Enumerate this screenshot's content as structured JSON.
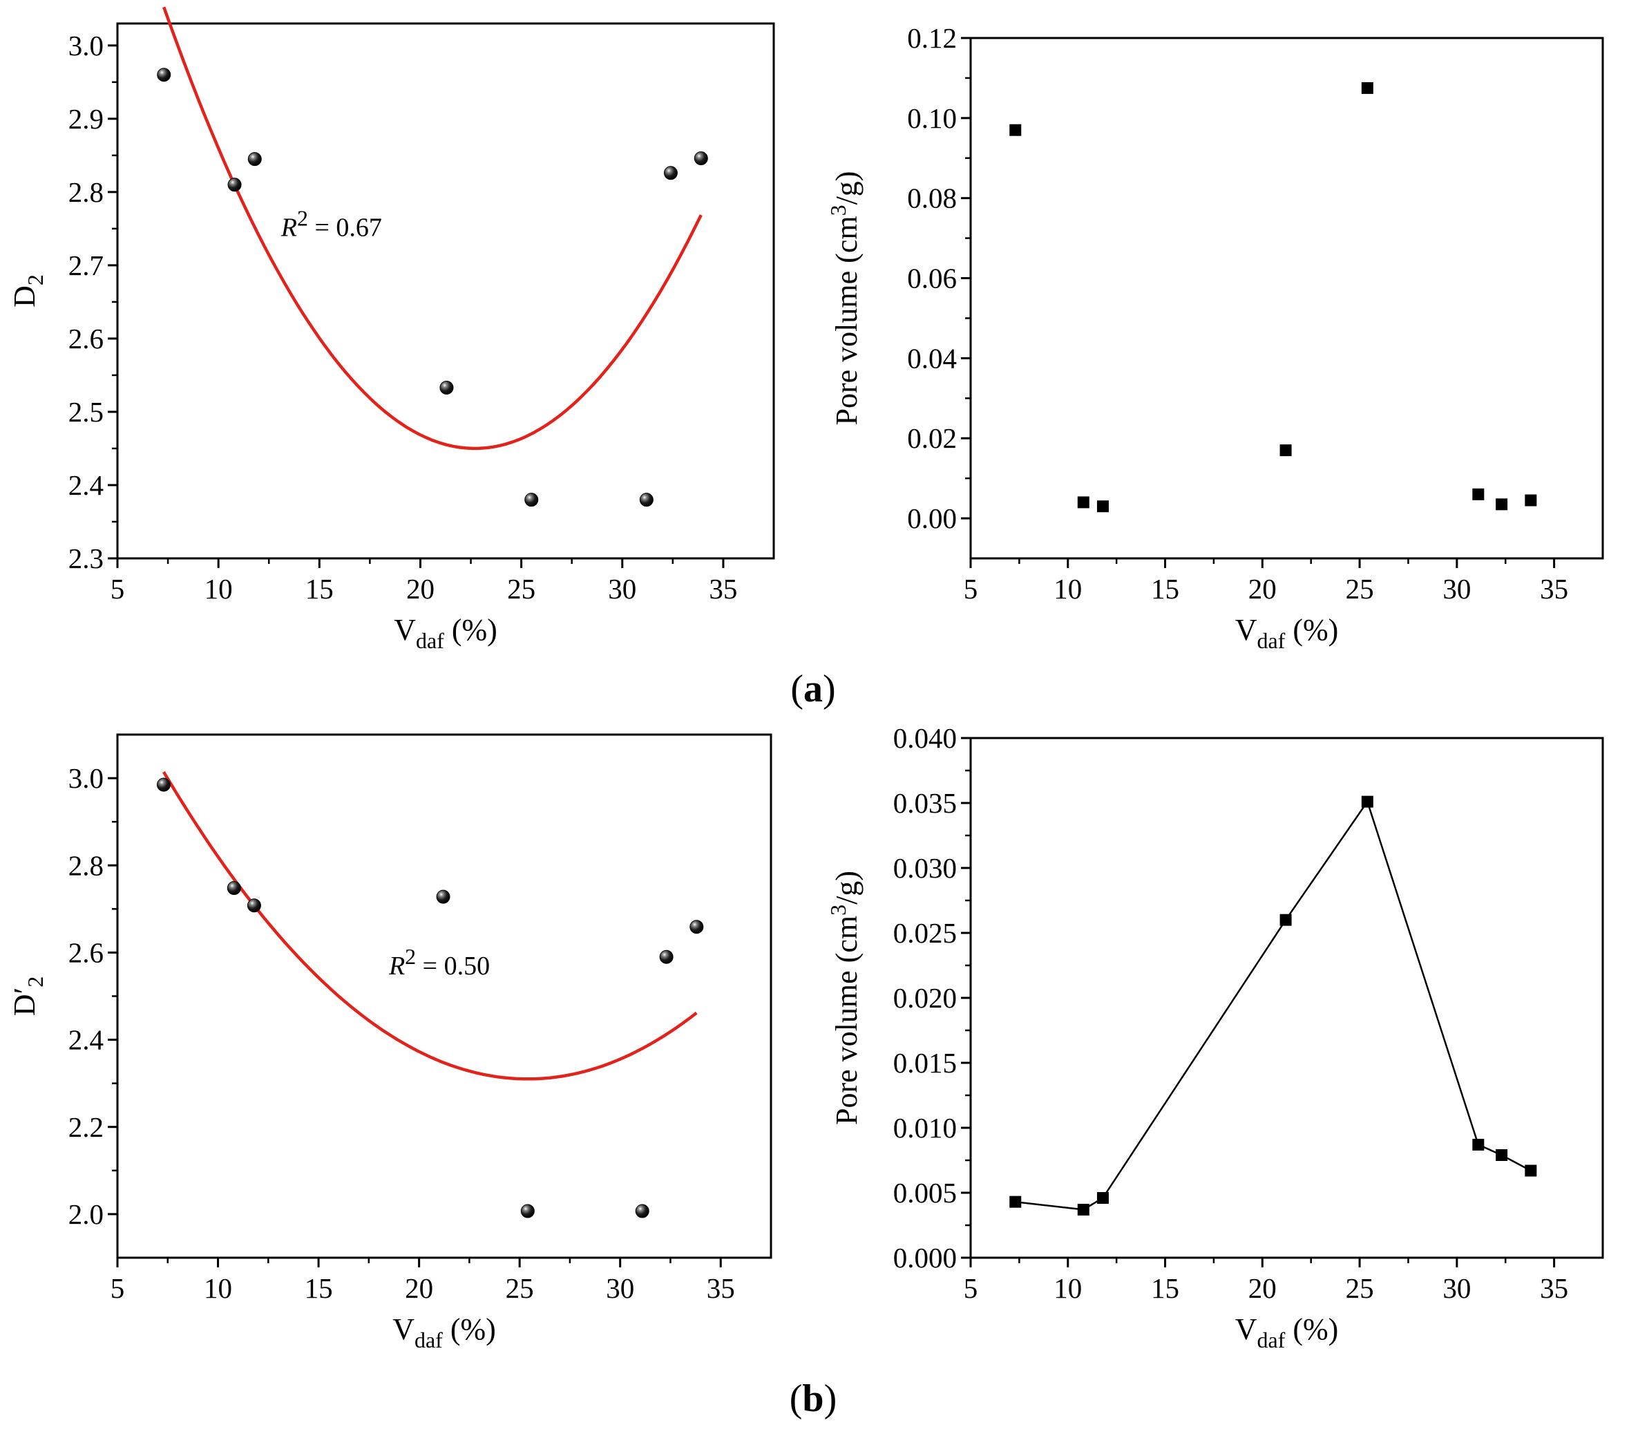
{
  "chart_data": [
    {
      "id": "a-left",
      "type": "scatter",
      "xlabel": {
        "main": "V",
        "sub": "daf",
        "rest": " (%)"
      },
      "ylabel": {
        "main": "D",
        "sub": "2"
      },
      "xlim": [
        5,
        37.5
      ],
      "ylim": [
        2.3,
        3.03
      ],
      "xticks": [
        5,
        10,
        15,
        20,
        25,
        30,
        35
      ],
      "yticks": [
        2.3,
        2.4,
        2.5,
        2.6,
        2.7,
        2.8,
        2.9,
        3.0
      ],
      "ytick_decimals": 1,
      "marker": "sphere",
      "x": [
        7.3,
        10.8,
        11.8,
        21.3,
        25.5,
        31.2,
        32.4,
        33.9
      ],
      "y": [
        2.96,
        2.81,
        2.845,
        2.533,
        2.38,
        2.38,
        2.826,
        2.846
      ],
      "fit": {
        "type": "quadratic",
        "color": "#e3231b",
        "x_range": [
          7.3,
          33.9
        ],
        "vertex_x": 22.7,
        "vertex_y": 2.45,
        "a": 0.00254
      },
      "annotation": {
        "label": "R",
        "sup": "2",
        "value": " = 0.67",
        "x": 13.1,
        "y": 2.74
      }
    },
    {
      "id": "a-right",
      "type": "scatter",
      "xlabel": {
        "main": "V",
        "sub": "daf",
        "rest": " (%)"
      },
      "ylabel": {
        "main": "Pore volume (cm",
        "sup": "3",
        "rest": "/g)"
      },
      "xlim": [
        5,
        37.5
      ],
      "ylim": [
        -0.01,
        0.12
      ],
      "xticks": [
        5,
        10,
        15,
        20,
        25,
        30,
        35
      ],
      "yticks": [
        0.0,
        0.02,
        0.04,
        0.06,
        0.08,
        0.1,
        0.12
      ],
      "ytick_decimals": 2,
      "marker": "square",
      "x": [
        7.3,
        10.8,
        11.8,
        21.2,
        25.4,
        31.1,
        32.3,
        33.8
      ],
      "y": [
        0.097,
        0.004,
        0.003,
        0.017,
        0.1075,
        0.006,
        0.0035,
        0.0045
      ]
    },
    {
      "id": "b-left",
      "type": "scatter",
      "xlabel": {
        "main": "V",
        "sub": "daf",
        "rest": " (%)"
      },
      "ylabel": {
        "main": "D′",
        "sub": "2"
      },
      "xlim": [
        5,
        37.5
      ],
      "ylim": [
        1.9,
        3.1
      ],
      "xticks": [
        5,
        10,
        15,
        20,
        25,
        30,
        35
      ],
      "yticks": [
        2.0,
        2.2,
        2.4,
        2.6,
        2.8,
        3.0
      ],
      "ytick_decimals": 1,
      "marker": "sphere",
      "x": [
        7.3,
        10.8,
        11.8,
        21.2,
        25.4,
        31.1,
        32.3,
        33.8
      ],
      "y": [
        2.985,
        2.748,
        2.708,
        2.728,
        2.007,
        2.007,
        2.59,
        2.659
      ],
      "fit": {
        "type": "quadratic",
        "color": "#e3231b",
        "x_range": [
          7.3,
          33.8
        ],
        "vertex_x": 25.4,
        "vertex_y": 2.31,
        "a": 0.00215
      },
      "annotation": {
        "label": "R",
        "sup": "2",
        "value": " = 0.50",
        "x": 18.5,
        "y": 2.55
      }
    },
    {
      "id": "b-right",
      "type": "line",
      "xlabel": {
        "main": "V",
        "sub": "daf",
        "rest": " (%)"
      },
      "ylabel": {
        "main": "Pore volume (cm",
        "sup": "3",
        "rest": "/g)"
      },
      "xlim": [
        5,
        37.5
      ],
      "ylim": [
        0.0,
        0.04
      ],
      "xticks": [
        5,
        10,
        15,
        20,
        25,
        30,
        35
      ],
      "yticks": [
        0.0,
        0.005,
        0.01,
        0.015,
        0.02,
        0.025,
        0.03,
        0.035,
        0.04
      ],
      "ytick_decimals": 3,
      "marker": "square",
      "x": [
        7.3,
        10.8,
        11.8,
        21.2,
        25.4,
        31.1,
        32.3,
        33.8
      ],
      "y": [
        0.0043,
        0.0037,
        0.0046,
        0.026,
        0.0351,
        0.0087,
        0.0079,
        0.0067
      ]
    }
  ],
  "panel_labels": [
    {
      "open": "(",
      "letter": "a",
      "close": ")"
    },
    {
      "open": "(",
      "letter": "b",
      "close": ")"
    }
  ]
}
